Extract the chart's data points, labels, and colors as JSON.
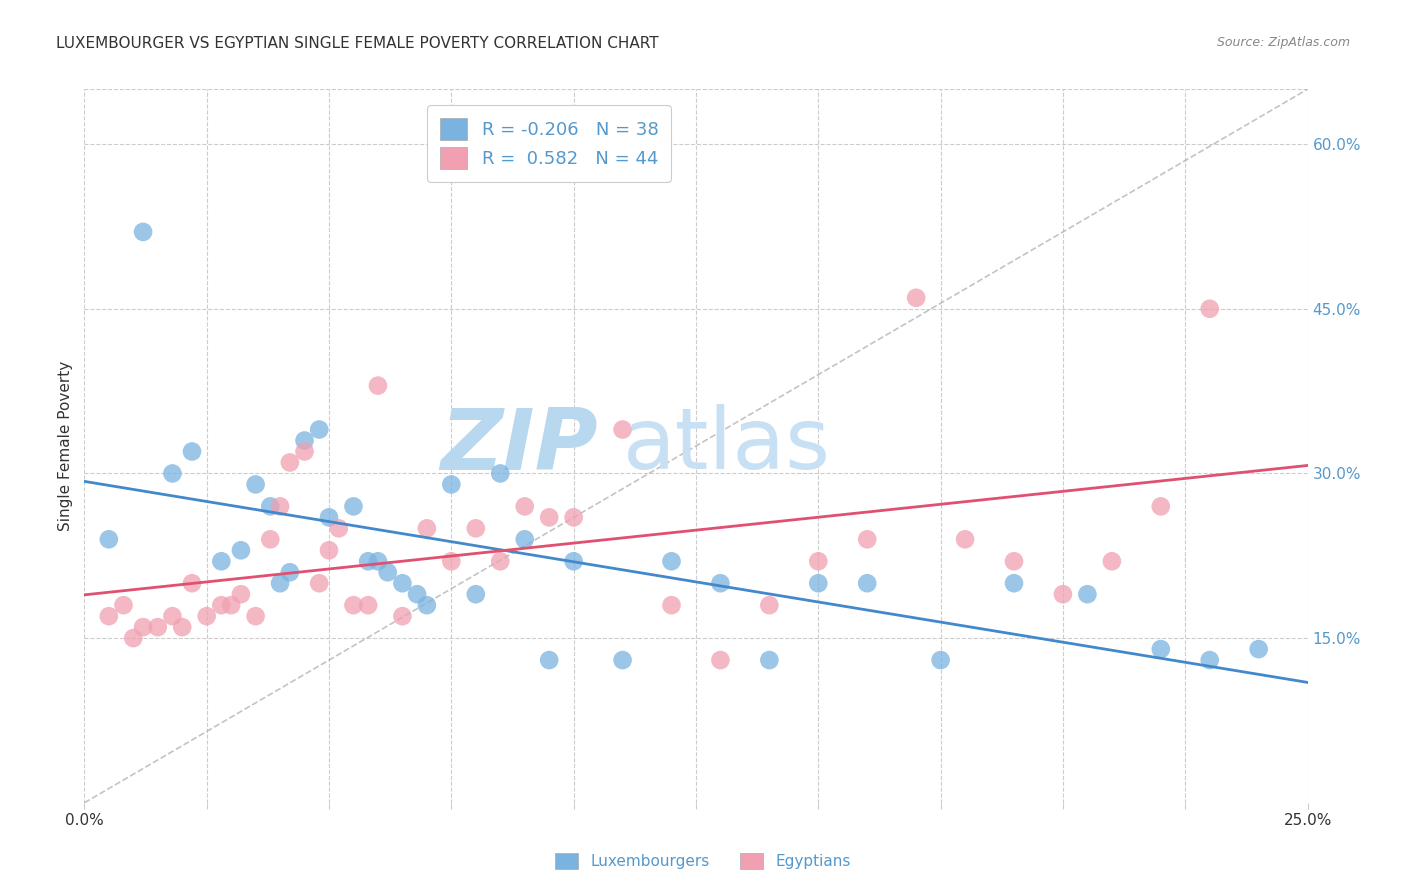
{
  "title": "LUXEMBOURGER VS EGYPTIAN SINGLE FEMALE POVERTY CORRELATION CHART",
  "source": "Source: ZipAtlas.com",
  "ylabel": "Single Female Poverty",
  "xlim": [
    0.0,
    0.25
  ],
  "ylim": [
    0.0,
    0.65
  ],
  "ytick_right_labels": [
    "15.0%",
    "30.0%",
    "45.0%",
    "60.0%"
  ],
  "ytick_right_values": [
    0.15,
    0.3,
    0.45,
    0.6
  ],
  "grid_color": "#cccccc",
  "background_color": "#ffffff",
  "watermark_text": "ZIPatlas",
  "watermark_color": "#d0e8f5",
  "legend_R_blue": "-0.206",
  "legend_N_blue": "38",
  "legend_R_pink": " 0.582",
  "legend_N_pink": "44",
  "blue_color": "#7ab3e0",
  "pink_color": "#f0a0b0",
  "blue_line_color": "#4488cc",
  "pink_line_color": "#e05070",
  "ref_line_color": "#aaaaaa",
  "tick_label_color": "#5599cc",
  "lux_x": [
    0.005,
    0.012,
    0.018,
    0.022,
    0.028,
    0.032,
    0.035,
    0.038,
    0.04,
    0.042,
    0.045,
    0.048,
    0.05,
    0.055,
    0.058,
    0.06,
    0.062,
    0.065,
    0.068,
    0.07,
    0.075,
    0.08,
    0.085,
    0.09,
    0.095,
    0.1,
    0.11,
    0.12,
    0.13,
    0.14,
    0.15,
    0.16,
    0.175,
    0.19,
    0.205,
    0.22,
    0.23,
    0.24
  ],
  "lux_y": [
    0.24,
    0.52,
    0.3,
    0.32,
    0.22,
    0.23,
    0.29,
    0.27,
    0.2,
    0.21,
    0.33,
    0.34,
    0.26,
    0.27,
    0.22,
    0.22,
    0.21,
    0.2,
    0.19,
    0.18,
    0.29,
    0.19,
    0.3,
    0.24,
    0.13,
    0.22,
    0.13,
    0.22,
    0.2,
    0.13,
    0.2,
    0.2,
    0.13,
    0.2,
    0.19,
    0.14,
    0.13,
    0.14
  ],
  "egy_x": [
    0.005,
    0.008,
    0.01,
    0.012,
    0.015,
    0.018,
    0.02,
    0.022,
    0.025,
    0.028,
    0.03,
    0.032,
    0.035,
    0.038,
    0.04,
    0.042,
    0.045,
    0.048,
    0.05,
    0.052,
    0.055,
    0.058,
    0.06,
    0.065,
    0.07,
    0.075,
    0.08,
    0.085,
    0.09,
    0.095,
    0.1,
    0.11,
    0.12,
    0.13,
    0.14,
    0.15,
    0.16,
    0.17,
    0.18,
    0.19,
    0.2,
    0.21,
    0.22,
    0.23
  ],
  "egy_y": [
    0.17,
    0.18,
    0.15,
    0.16,
    0.16,
    0.17,
    0.16,
    0.2,
    0.17,
    0.18,
    0.18,
    0.19,
    0.17,
    0.24,
    0.27,
    0.31,
    0.32,
    0.2,
    0.23,
    0.25,
    0.18,
    0.18,
    0.38,
    0.17,
    0.25,
    0.22,
    0.25,
    0.22,
    0.27,
    0.26,
    0.26,
    0.34,
    0.18,
    0.13,
    0.18,
    0.22,
    0.24,
    0.46,
    0.24,
    0.22,
    0.19,
    0.22,
    0.27,
    0.45
  ]
}
